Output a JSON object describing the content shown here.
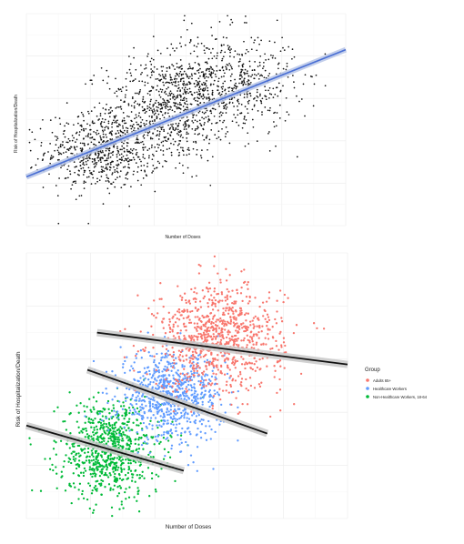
{
  "chart_data": [
    {
      "type": "scatter",
      "title": "",
      "xlabel": "Number of Doses",
      "ylabel": "Risk of Hospitalization/Death",
      "xlim": [
        0,
        100
      ],
      "ylim": [
        0,
        100
      ],
      "grid": true,
      "point_color": "#111111",
      "fit": {
        "method": "linear",
        "color": "#4a6fd4",
        "band_color": "#b8c6e8",
        "x": [
          0,
          100
        ],
        "y": [
          23,
          83
        ]
      },
      "series": [
        {
          "clusters": [
            {
              "center": [
                24,
                35
              ],
              "spread": [
                9,
                9
              ],
              "n": 650
            },
            {
              "center": [
                44,
                55
              ],
              "spread": [
                10,
                12
              ],
              "n": 650
            },
            {
              "center": [
                62,
                67
              ],
              "spread": [
                11,
                12
              ],
              "n": 650
            }
          ]
        }
      ]
    },
    {
      "type": "scatter",
      "title": "",
      "xlabel": "Number of Doses",
      "ylabel": "Risk of Hospitalization/Death",
      "xlim": [
        0,
        100
      ],
      "ylim": [
        0,
        100
      ],
      "grid": true,
      "legend_position": "right",
      "legend_title": "Group",
      "series": [
        {
          "name": "Adults 65+",
          "color": "#f8766d",
          "cluster": {
            "center": [
              60,
              68
            ],
            "spread": [
              10,
              10
            ],
            "n": 900
          },
          "fit": {
            "x": [
              22,
              100
            ],
            "y": [
              70,
              58
            ]
          }
        },
        {
          "name": "Healthcare Workers",
          "color": "#619cff",
          "cluster": {
            "center": [
              45,
              46
            ],
            "spread": [
              8,
              8
            ],
            "n": 800
          },
          "fit": {
            "x": [
              19,
              75
            ],
            "y": [
              56,
              32
            ]
          }
        },
        {
          "name": "Non-Healthcare Workers, 18-64",
          "color": "#00ba38",
          "cluster": {
            "center": [
              26,
              26
            ],
            "spread": [
              8,
              9
            ],
            "n": 800
          },
          "fit": {
            "x": [
              0,
              49
            ],
            "y": [
              35,
              18
            ]
          }
        }
      ]
    }
  ]
}
